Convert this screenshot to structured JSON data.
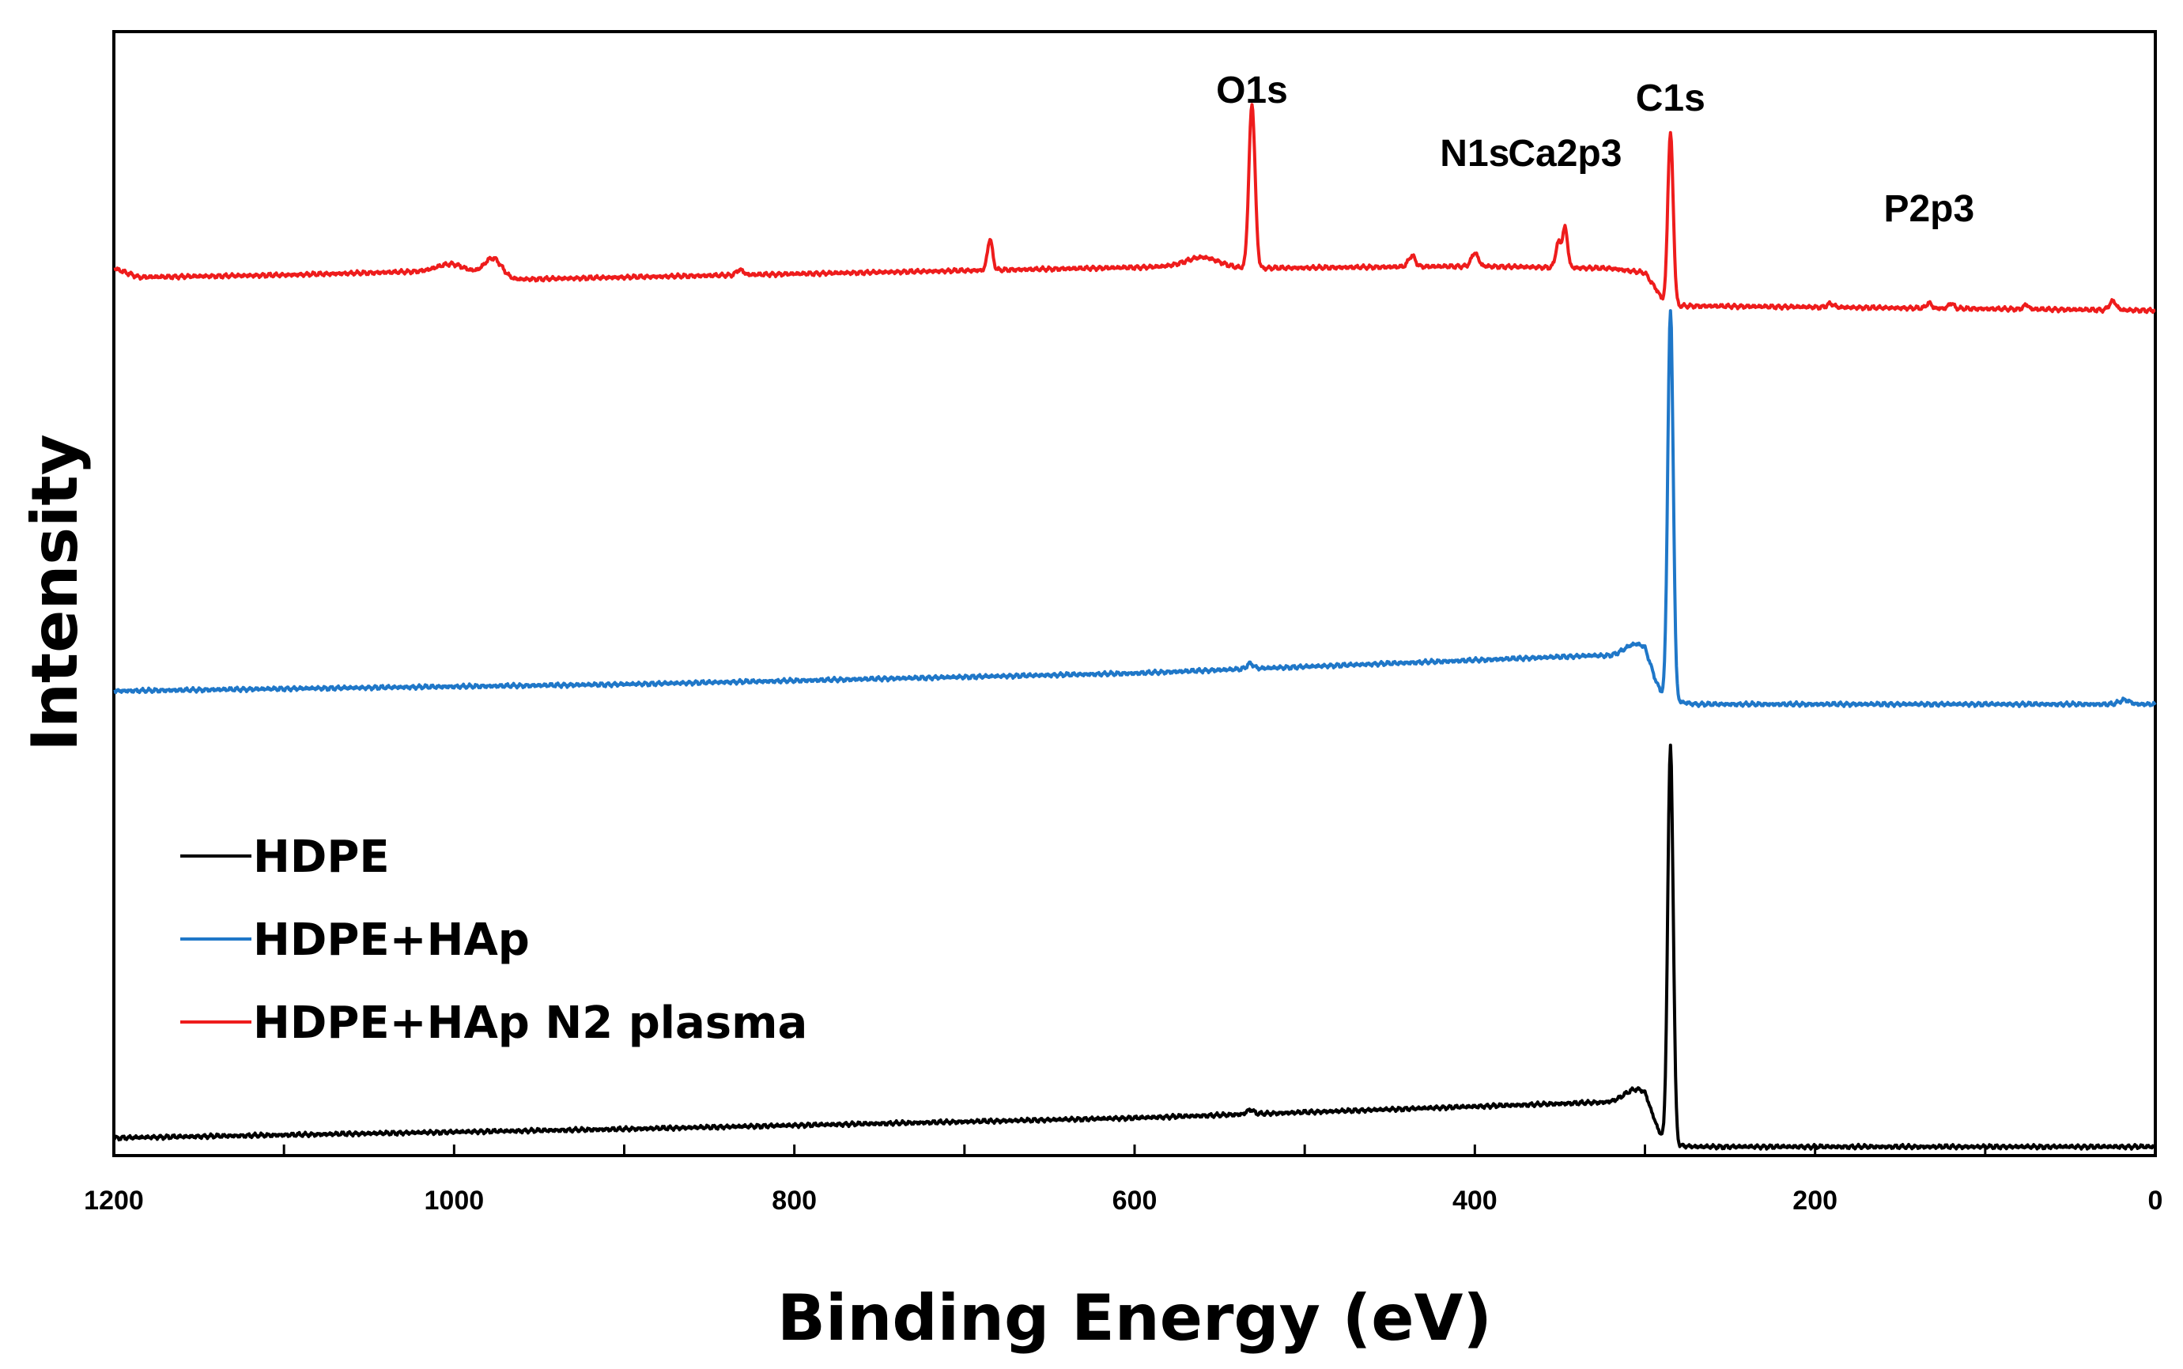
{
  "chart_data": {
    "type": "line",
    "title": "",
    "xlabel": "Binding Energy (eV)",
    "ylabel": "Intensity",
    "xlim": [
      1200,
      0
    ],
    "x_reversed": true,
    "x_ticks": [
      1200,
      1000,
      800,
      600,
      400,
      200,
      0
    ],
    "y_ticks": [],
    "grid": false,
    "legend": {
      "position": "bottom-left",
      "entries": [
        "HDPE",
        "HDPE+HAp",
        "HDPE+HAp N2 plasma"
      ]
    },
    "annotations": [
      {
        "text": "O1s",
        "x": 531
      },
      {
        "text": "N1s",
        "x": 400
      },
      {
        "text": "Ca2p3",
        "x": 347
      },
      {
        "text": "C1s",
        "x": 285
      },
      {
        "text": "P2p3",
        "x": 133
      }
    ],
    "series": [
      {
        "name": "HDPE",
        "color": "#000000",
        "baseline": [
          [
            1200,
            0.02
          ],
          [
            900,
            0.04
          ],
          [
            600,
            0.065
          ],
          [
            330,
            0.1
          ],
          [
            300,
            0.1
          ],
          [
            293,
            0.04
          ],
          [
            288,
            0.005
          ],
          [
            270,
            0.0
          ],
          [
            0,
            0.0
          ]
        ],
        "peaks": [
          [
            305,
            0.03,
            7
          ],
          [
            285,
            0.9,
            1.6
          ],
          [
            532,
            0.01,
            2
          ]
        ]
      },
      {
        "name": "HDPE+HAp",
        "color": "#1f77c8",
        "baseline": [
          [
            1200,
            1.03
          ],
          [
            900,
            1.045
          ],
          [
            600,
            1.07
          ],
          [
            330,
            1.11
          ],
          [
            300,
            1.105
          ],
          [
            293,
            1.04
          ],
          [
            288,
            1.01
          ],
          [
            270,
            1.0
          ],
          [
            0,
            1.0
          ]
        ],
        "peaks": [
          [
            305,
            0.03,
            7
          ],
          [
            285,
            0.88,
            1.6
          ],
          [
            532,
            0.012,
            2
          ],
          [
            18,
            0.01,
            3
          ]
        ]
      },
      {
        "name": "HDPE+HAp N2 plasma",
        "color": "#ee1c1c",
        "baseline": [
          [
            1200,
            1.985
          ],
          [
            1185,
            1.965
          ],
          [
            1100,
            1.97
          ],
          [
            1000,
            1.98
          ],
          [
            980,
            1.97
          ],
          [
            965,
            1.96
          ],
          [
            900,
            1.965
          ],
          [
            700,
            1.98
          ],
          [
            560,
            1.99
          ],
          [
            540,
            1.985
          ],
          [
            400,
            1.99
          ],
          [
            320,
            1.985
          ],
          [
            300,
            1.975
          ],
          [
            292,
            1.93
          ],
          [
            288,
            1.9
          ],
          [
            270,
            1.9
          ],
          [
            0,
            1.89
          ]
        ],
        "peaks": [
          [
            531,
            0.37,
            1.8
          ],
          [
            285,
            0.39,
            1.6
          ],
          [
            977,
            0.04,
            5
          ],
          [
            1002,
            0.015,
            8
          ],
          [
            832,
            0.012,
            2
          ],
          [
            685,
            0.07,
            1.5
          ],
          [
            560,
            0.02,
            10
          ],
          [
            437,
            0.025,
            2
          ],
          [
            400,
            0.03,
            2
          ],
          [
            347,
            0.09,
            1.5
          ],
          [
            351,
            0.055,
            1.5
          ],
          [
            133,
            0.012,
            1.5
          ],
          [
            120,
            0.012,
            1.5
          ],
          [
            76,
            0.01,
            1.5
          ],
          [
            25,
            0.02,
            2
          ],
          [
            191,
            0.008,
            2
          ]
        ]
      }
    ]
  }
}
